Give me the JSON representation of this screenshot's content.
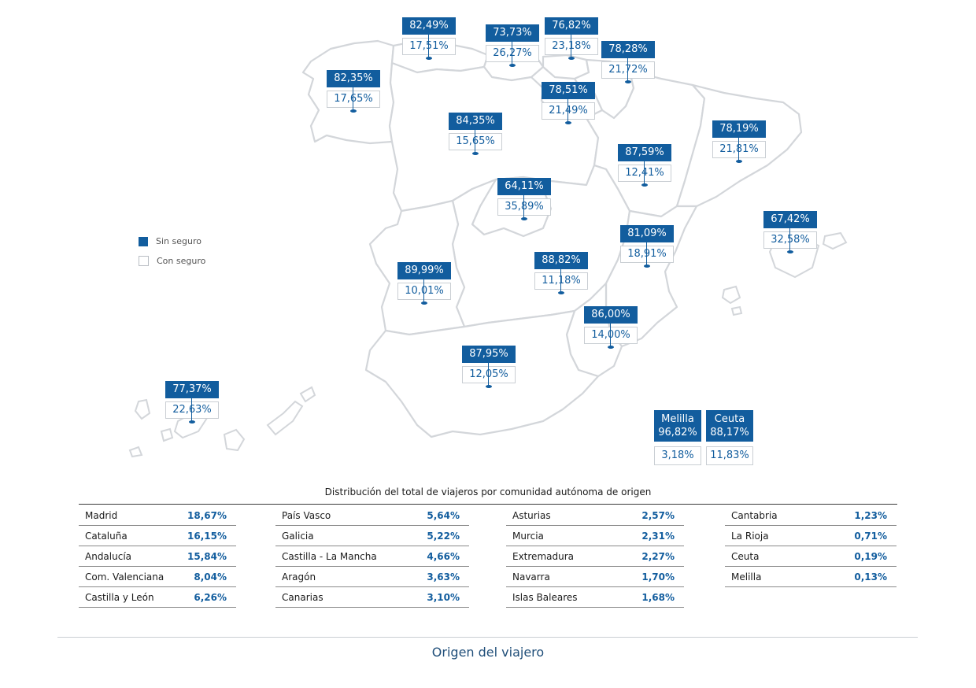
{
  "legend": {
    "sin_label": "Sin seguro",
    "con_label": "Con seguro",
    "sin_color": "#125d9e",
    "con_color": "#ffffff"
  },
  "regions": [
    {
      "id": "galicia",
      "sin": "82,35%",
      "con": "17,65%"
    },
    {
      "id": "asturias",
      "sin": "82,49%",
      "con": "17,51%"
    },
    {
      "id": "cantabria",
      "sin": "73,73%",
      "con": "26,27%"
    },
    {
      "id": "pais-vasco",
      "sin": "76,82%",
      "con": "23,18%"
    },
    {
      "id": "navarra",
      "sin": "78,28%",
      "con": "21,72%"
    },
    {
      "id": "la-rioja",
      "sin": "78,51%",
      "con": "21,49%"
    },
    {
      "id": "castilla-leon",
      "sin": "84,35%",
      "con": "15,65%"
    },
    {
      "id": "cataluna",
      "sin": "78,19%",
      "con": "21,81%"
    },
    {
      "id": "aragon",
      "sin": "87,59%",
      "con": "12,41%"
    },
    {
      "id": "madrid",
      "sin": "64,11%",
      "con": "35,89%"
    },
    {
      "id": "islas-baleares",
      "sin": "67,42%",
      "con": "32,58%"
    },
    {
      "id": "com-valenciana",
      "sin": "81,09%",
      "con": "18,91%"
    },
    {
      "id": "extremadura",
      "sin": "89,99%",
      "con": "10,01%"
    },
    {
      "id": "castilla-la-mancha",
      "sin": "88,82%",
      "con": "11,18%"
    },
    {
      "id": "murcia",
      "sin": "86,00%",
      "con": "14,00%"
    },
    {
      "id": "andalucia",
      "sin": "87,95%",
      "con": "12,05%"
    },
    {
      "id": "canarias",
      "sin": "77,37%",
      "con": "22,63%"
    }
  ],
  "cities": [
    {
      "id": "melilla",
      "name": "Melilla",
      "sin": "96,82%",
      "con": "3,18%"
    },
    {
      "id": "ceuta",
      "name": "Ceuta",
      "sin": "88,17%",
      "con": "11,83%"
    }
  ],
  "table": {
    "title": "Distribución del total de viajeros por comunidad autónoma de origen",
    "columns": [
      [
        {
          "name": "Madrid",
          "value": "18,67%"
        },
        {
          "name": "Cataluña",
          "value": "16,15%"
        },
        {
          "name": "Andalucía",
          "value": "15,84%"
        },
        {
          "name": "Com. Valenciana",
          "value": "8,04%"
        },
        {
          "name": "Castilla y León",
          "value": "6,26%"
        }
      ],
      [
        {
          "name": "País Vasco",
          "value": "5,64%"
        },
        {
          "name": "Galicia",
          "value": "5,22%"
        },
        {
          "name": "Castilla - La Mancha",
          "value": "4,66%"
        },
        {
          "name": "Aragón",
          "value": "3,63%"
        },
        {
          "name": "Canarias",
          "value": "3,10%"
        }
      ],
      [
        {
          "name": "Asturias",
          "value": "2,57%"
        },
        {
          "name": "Murcia",
          "value": "2,31%"
        },
        {
          "name": "Extremadura",
          "value": "2,27%"
        },
        {
          "name": "Navarra",
          "value": "1,70%"
        },
        {
          "name": "Islas Baleares",
          "value": "1,68%"
        }
      ],
      [
        {
          "name": "Cantabria",
          "value": "1,23%"
        },
        {
          "name": "La Rioja",
          "value": "0,71%"
        },
        {
          "name": "Ceuta",
          "value": "0,19%"
        },
        {
          "name": "Melilla",
          "value": "0,13%"
        }
      ]
    ]
  },
  "footer": {
    "title": "Origen del viajero"
  }
}
